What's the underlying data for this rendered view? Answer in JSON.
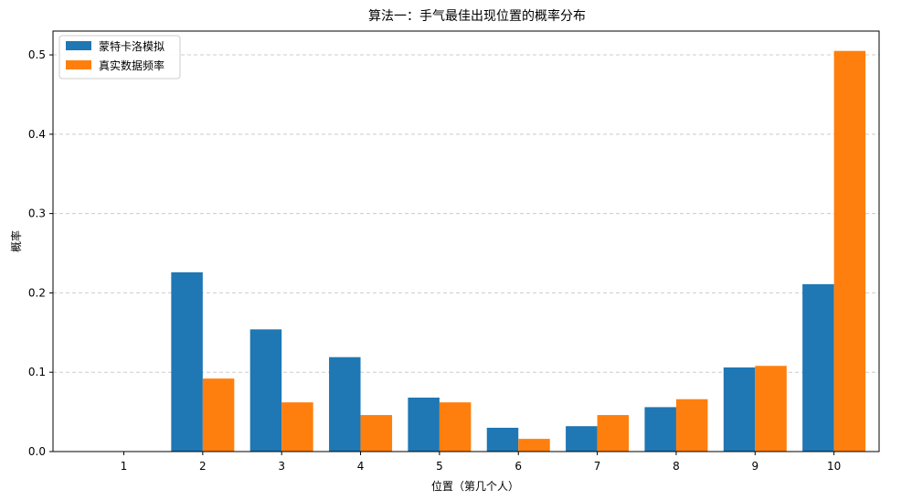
{
  "chart_data": {
    "type": "bar",
    "title": "算法一：手气最佳出现位置的概率分布",
    "xlabel": "位置（第几个人）",
    "ylabel": "概率",
    "categories": [
      "1",
      "2",
      "3",
      "4",
      "5",
      "6",
      "7",
      "8",
      "9",
      "10"
    ],
    "series": [
      {
        "name": "蒙特卡洛模拟",
        "color": "#1f77b4",
        "values": [
          0.0,
          0.226,
          0.154,
          0.119,
          0.068,
          0.03,
          0.032,
          0.056,
          0.106,
          0.211
        ]
      },
      {
        "name": "真实数据频率",
        "color": "#ff7f0e",
        "values": [
          0.0,
          0.092,
          0.062,
          0.046,
          0.062,
          0.016,
          0.046,
          0.066,
          0.108,
          0.505
        ]
      }
    ],
    "yticks": [
      "0.0",
      "0.1",
      "0.2",
      "0.3",
      "0.4",
      "0.5"
    ],
    "ylim": [
      0,
      0.53
    ],
    "grid": "horizontal dashed",
    "legend_position": "top-left"
  }
}
